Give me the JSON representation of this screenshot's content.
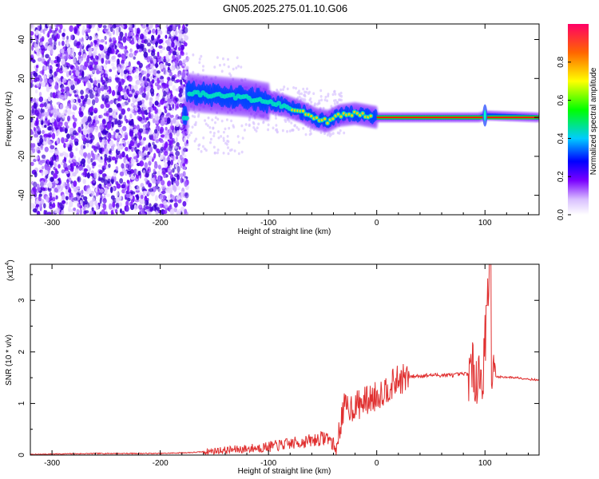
{
  "title": "GN05.2025.275.01.10.G06",
  "chart_data": [
    {
      "type": "heatmap",
      "xlabel": "Height of straight line (km)",
      "ylabel": "Frequency (Hz)",
      "xlim": [
        -320,
        150
      ],
      "ylim": [
        -50,
        48
      ],
      "xticks": [
        -300,
        -200,
        -100,
        0,
        100
      ],
      "yticks": [
        -40,
        -20,
        0,
        20,
        40
      ],
      "colorbar": {
        "label": "Normalized spectral amplitude",
        "range": [
          0,
          1
        ],
        "ticks": [
          "0.0",
          "0.2",
          "0.4",
          "0.6",
          "0.8"
        ]
      },
      "ridge": [
        {
          "x": -175,
          "y": 13
        },
        {
          "x": -160,
          "y": 12
        },
        {
          "x": -140,
          "y": 11
        },
        {
          "x": -120,
          "y": 10
        },
        {
          "x": -100,
          "y": 8
        },
        {
          "x": -85,
          "y": 6
        },
        {
          "x": -70,
          "y": 3
        },
        {
          "x": -55,
          "y": -1
        },
        {
          "x": -45,
          "y": -2
        },
        {
          "x": -35,
          "y": 1
        },
        {
          "x": -20,
          "y": 2
        },
        {
          "x": -10,
          "y": 1
        },
        {
          "x": 0,
          "y": 0
        },
        {
          "x": 50,
          "y": 0
        },
        {
          "x": 95,
          "y": 0
        },
        {
          "x": 100,
          "y": 1
        },
        {
          "x": 150,
          "y": 0
        }
      ]
    },
    {
      "type": "line",
      "xlabel": "Height of straight line (km)",
      "ylabel": "SNR (10 * v/v)",
      "yscale_label": "(x10",
      "yscale_exp": "4",
      "ylabel_close": ")",
      "xlim": [
        -320,
        150
      ],
      "ylim": [
        0,
        3.7
      ],
      "xticks": [
        -300,
        -200,
        -100,
        0,
        100
      ],
      "yticks": [
        0,
        1,
        2,
        3
      ],
      "series": [
        {
          "color": "#e03030",
          "x": [
            -320,
            -300,
            -250,
            -200,
            -170,
            -150,
            -120,
            -100,
            -80,
            -60,
            -45,
            -37,
            -33,
            -30,
            -20,
            -10,
            0,
            10,
            20,
            30,
            50,
            70,
            85,
            92,
            98,
            103,
            105,
            110,
            130,
            150
          ],
          "y": [
            0.01,
            0.02,
            0.03,
            0.03,
            0.05,
            0.08,
            0.12,
            0.16,
            0.22,
            0.28,
            0.35,
            0.1,
            0.7,
            0.9,
            0.95,
            1.05,
            1.15,
            1.3,
            1.45,
            1.52,
            1.55,
            1.55,
            1.58,
            1.6,
            1.5,
            3.3,
            1.5,
            1.52,
            1.5,
            1.45
          ]
        }
      ]
    }
  ]
}
